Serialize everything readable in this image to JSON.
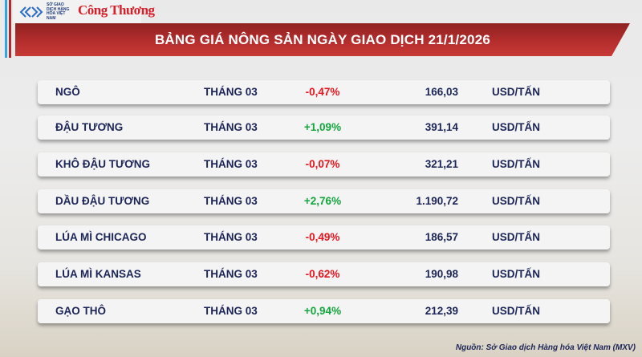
{
  "header": {
    "logo_mxv": "SỞ GIAO DỊCH HÀNG HÓA VIỆT NAM",
    "logo_congthuong": "Công Thương",
    "title": "BẢNG GIÁ NÔNG SẢN NGÀY GIAO DỊCH 21/1/2026"
  },
  "colors": {
    "negative": "#e8141c",
    "positive": "#13a63c",
    "text": "#1c2557",
    "title_bar": "#b52d2d"
  },
  "rows": [
    {
      "name": "NGÔ",
      "month": "THÁNG 03",
      "change": "-0,47%",
      "price": "166,03",
      "unit": "USD/TẤN",
      "dir": "neg"
    },
    {
      "name": "ĐẬU TƯƠNG",
      "month": "THÁNG 03",
      "change": "+1,09%",
      "price": "391,14",
      "unit": "USD/TẤN",
      "dir": "pos"
    },
    {
      "name": "KHÔ ĐẬU TƯƠNG",
      "month": "THÁNG 03",
      "change": "-0,07%",
      "price": "321,21",
      "unit": "USD/TẤN",
      "dir": "neg"
    },
    {
      "name": "DẦU ĐẬU TƯƠNG",
      "month": "THÁNG 03",
      "change": "+2,76%",
      "price": "1.190,72",
      "unit": "USD/TẤN",
      "dir": "pos"
    },
    {
      "name": "LÚA MÌ CHICAGO",
      "month": "THÁNG 03",
      "change": "-0,49%",
      "price": "186,57",
      "unit": "USD/TẤN",
      "dir": "neg"
    },
    {
      "name": "LÚA MÌ KANSAS",
      "month": "THÁNG 03",
      "change": "-0,62%",
      "price": "190,98",
      "unit": "USD/TẤN",
      "dir": "neg"
    },
    {
      "name": "GẠO THÔ",
      "month": "THÁNG 03",
      "change": "+0,94%",
      "price": "212,39",
      "unit": "USD/TẤN",
      "dir": "pos"
    }
  ],
  "footer": {
    "source": "Nguồn: Sở Giao dịch Hàng hóa Việt Nam (MXV)"
  }
}
